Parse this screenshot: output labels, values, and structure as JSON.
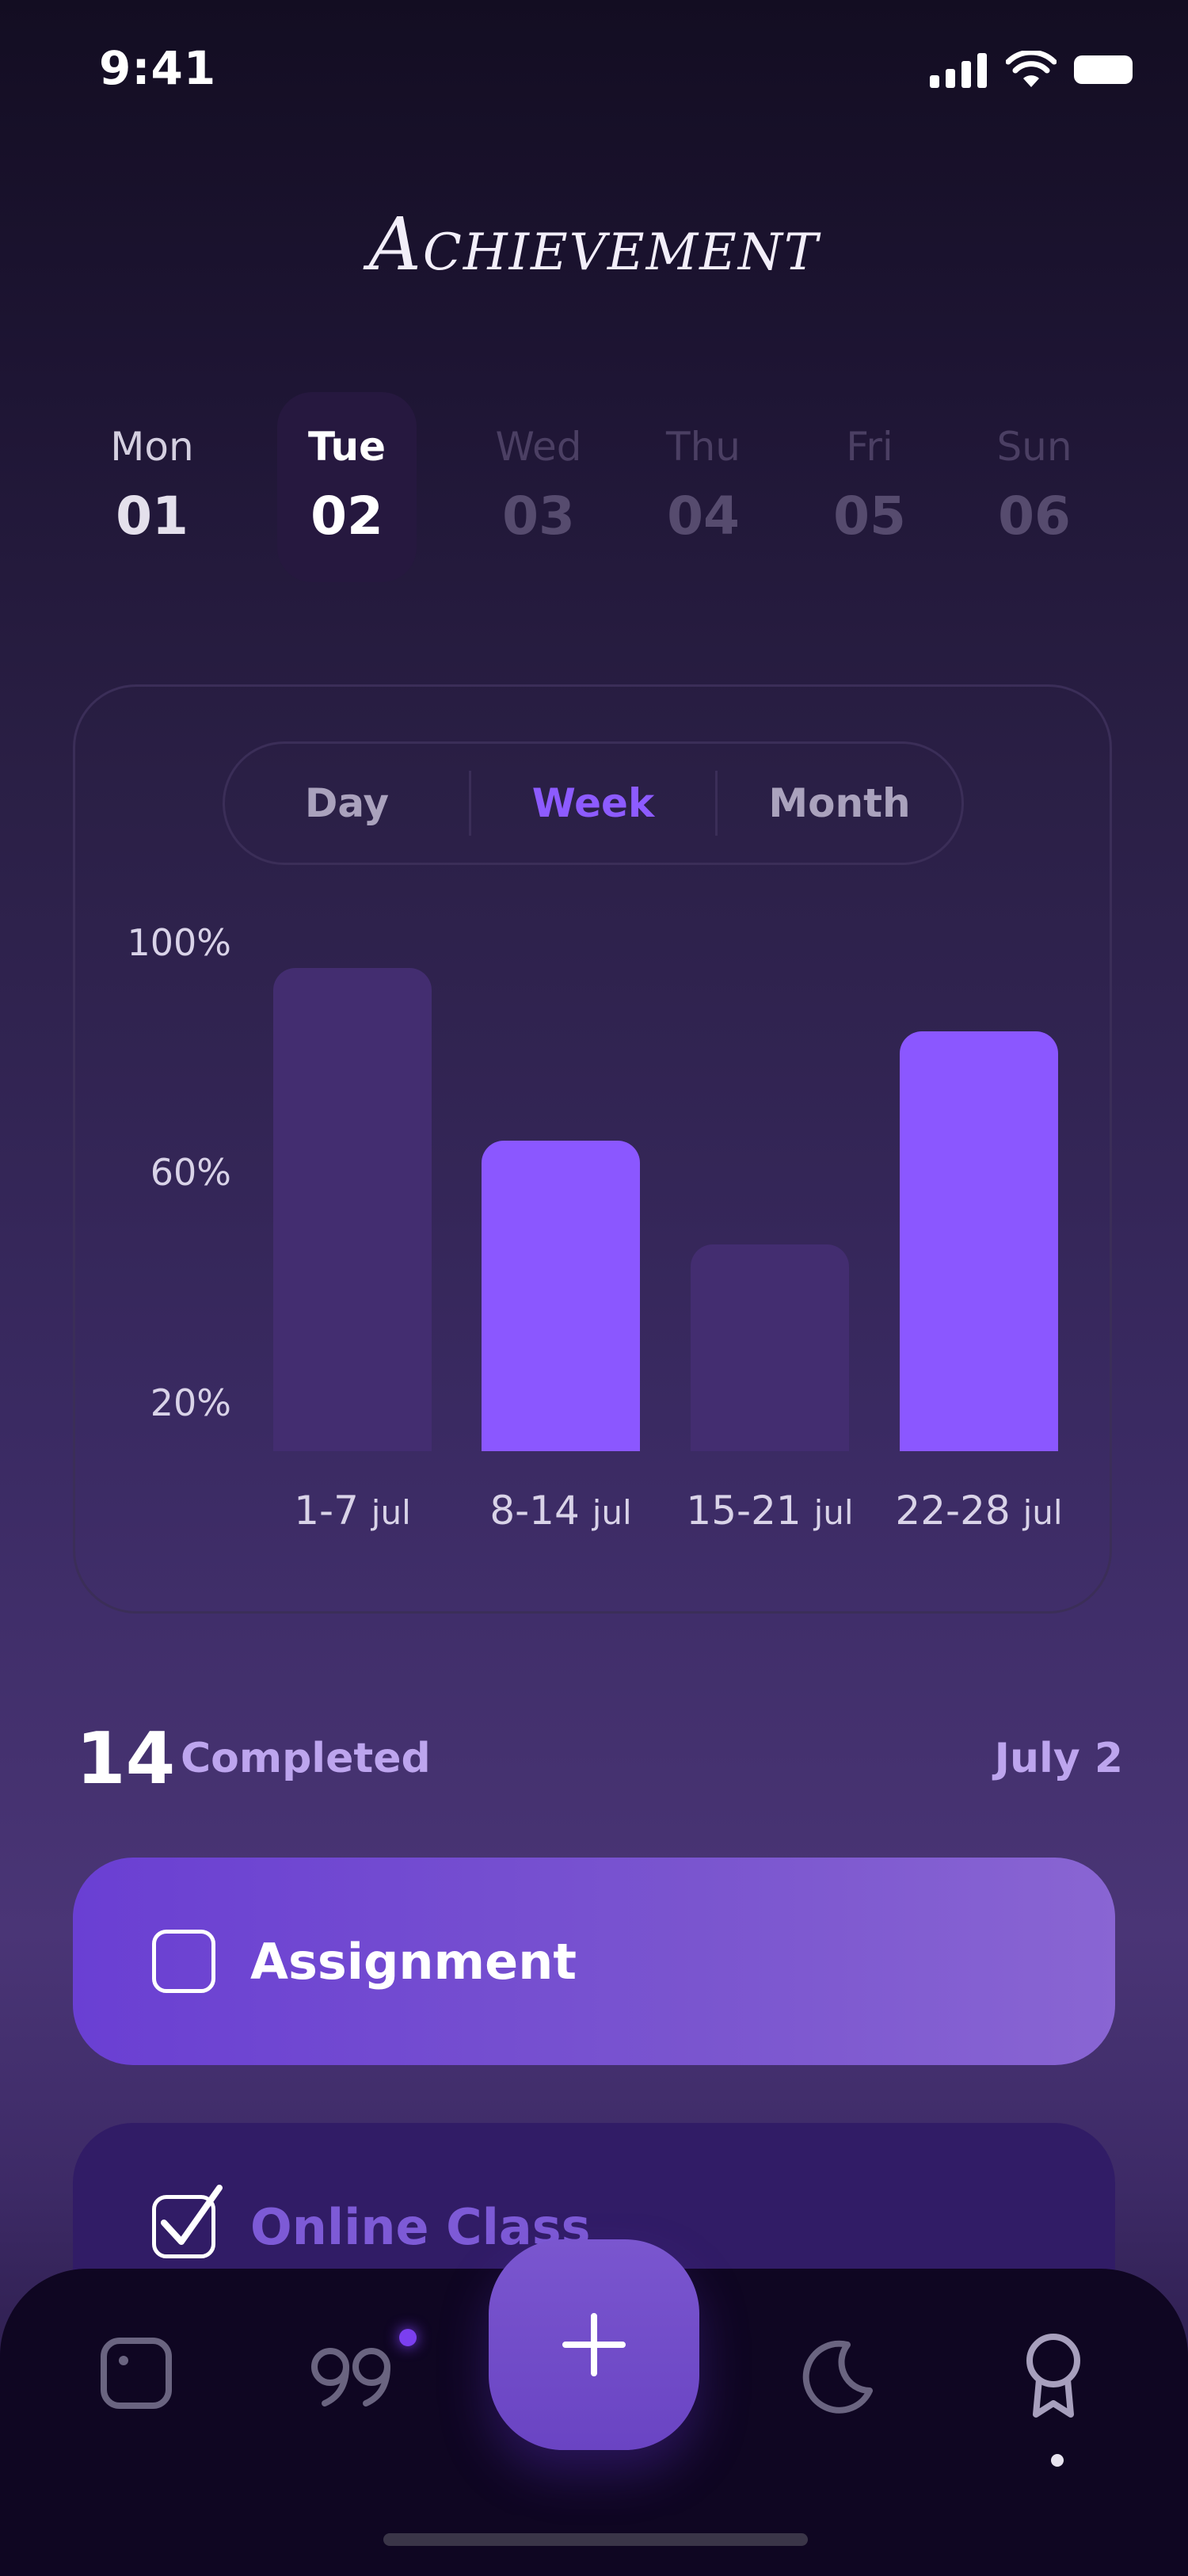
{
  "status_bar": {
    "time": "9:41"
  },
  "title": "Achievement",
  "days": [
    {
      "name": "Mon",
      "num": "01",
      "state": "past"
    },
    {
      "name": "Tue",
      "num": "02",
      "state": "active"
    },
    {
      "name": "Wed",
      "num": "03",
      "state": "future"
    },
    {
      "name": "Thu",
      "num": "04",
      "state": "future"
    },
    {
      "name": "Fri",
      "num": "05",
      "state": "future"
    },
    {
      "name": "Sun",
      "num": "06",
      "state": "future"
    }
  ],
  "segments": {
    "day": "Day",
    "week": "Week",
    "month": "Month",
    "selected": "Week"
  },
  "chart_data": {
    "type": "bar",
    "categories": [
      "1-7 jul",
      "8-14 jul",
      "15-21 jul",
      "22-28 jul"
    ],
    "category_parts": [
      [
        "1-7",
        "jul"
      ],
      [
        "8-14",
        "jul"
      ],
      [
        "15-21",
        "jul"
      ],
      [
        "22-28",
        "jul"
      ]
    ],
    "values": [
      96,
      66,
      48,
      85
    ],
    "highlighted": [
      false,
      true,
      false,
      true
    ],
    "y_ticks": [
      "100%",
      "60%",
      "20%"
    ],
    "ylim": [
      12,
      100
    ],
    "colors": {
      "highlight": "#8b57ff",
      "muted": "#432d70"
    }
  },
  "summary": {
    "count": "14",
    "label": "Completed",
    "date": "July 2"
  },
  "tasks": [
    {
      "label": "Assignment",
      "checked": false
    },
    {
      "label": "Online Class",
      "checked": true
    }
  ],
  "tab_bar": {
    "icons": [
      "tasks-square-icon",
      "quotes-icon",
      "add-icon",
      "moon-icon",
      "award-icon"
    ],
    "active": "award-icon"
  },
  "colors": {
    "accent": "#8d5bff",
    "card_border": "#3b2e58"
  }
}
